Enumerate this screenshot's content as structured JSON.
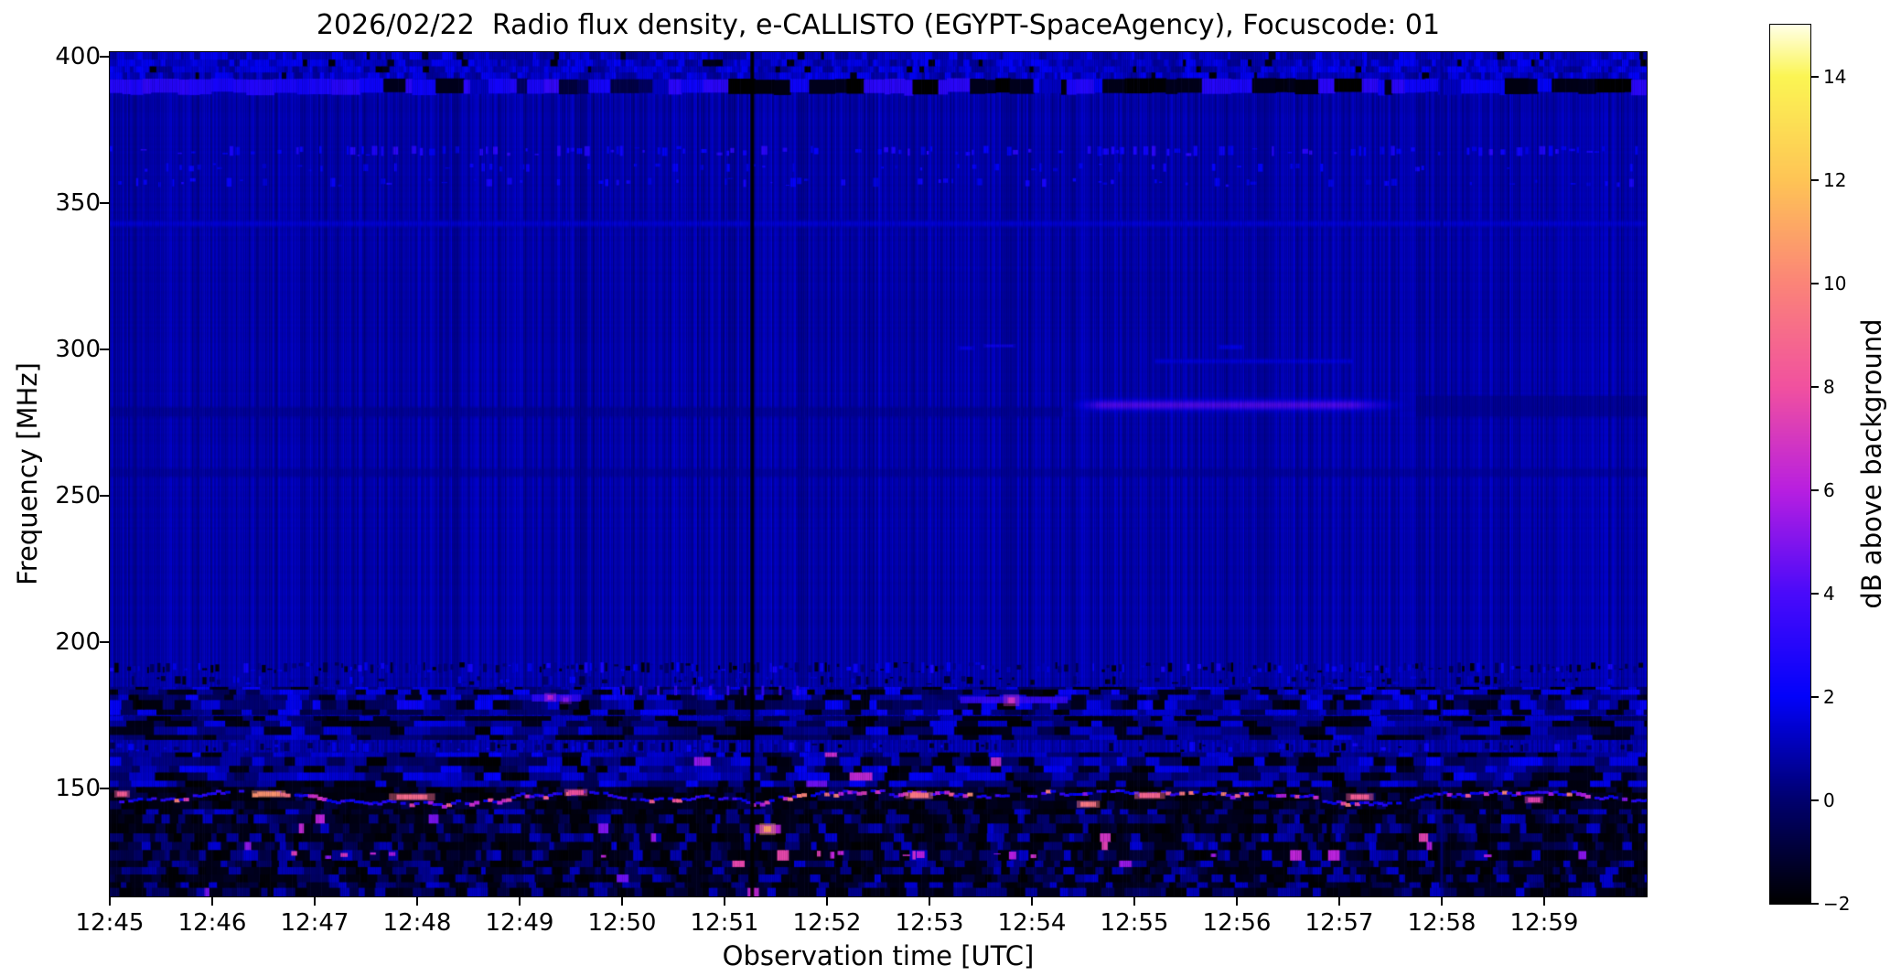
{
  "chart_data": {
    "type": "heatmap",
    "title": "2026/02/22  Radio flux density, e-CALLISTO (EGYPT-SpaceAgency), Focuscode: 01",
    "xlabel": "Observation time [UTC]",
    "ylabel": "Frequency [MHz]",
    "colorbar_label": "dB above background",
    "x_ticks": [
      "12:45",
      "12:46",
      "12:47",
      "12:48",
      "12:49",
      "12:50",
      "12:51",
      "12:52",
      "12:53",
      "12:54",
      "12:55",
      "12:56",
      "12:57",
      "12:58",
      "12:59"
    ],
    "y_ticks": [
      400,
      350,
      300,
      250,
      200,
      150
    ],
    "x_range": {
      "start": "12:45",
      "end": "13:00",
      "minutes": 15
    },
    "y_range_mhz": [
      113,
      401.5
    ],
    "value_range_db": [
      -2,
      15
    ],
    "colorbar_ticks": [
      14,
      12,
      10,
      8,
      6,
      4,
      2,
      0,
      -2
    ],
    "background_db": 0.9,
    "grid": false,
    "colormap": {
      "name": "gnuplot2-like",
      "stops": [
        [
          -2,
          "#000000"
        ],
        [
          0,
          "#00006e"
        ],
        [
          2,
          "#0202fa"
        ],
        [
          4,
          "#4a0afa"
        ],
        [
          6,
          "#b81fe0"
        ],
        [
          8,
          "#f1519f"
        ],
        [
          10,
          "#fb8478"
        ],
        [
          12,
          "#fec455"
        ],
        [
          14,
          "#fbf553"
        ],
        [
          15,
          "#ffffe6"
        ]
      ]
    },
    "features": [
      {
        "id": "bright-top-edge",
        "type": "mottle",
        "desc": "brighter striped rows at very top",
        "f": [
          392.5,
          401.5
        ],
        "t": [
          0,
          15
        ],
        "base": 1.3,
        "amp": 0.8,
        "cell": [
          0.05,
          3.0
        ],
        "dark_frac": 0.05
      },
      {
        "id": "rfi-band-390",
        "type": "segment_row",
        "desc": "RFI band of alternating bright-blue and black segments",
        "f": [
          387.3,
          392.3
        ],
        "t": [
          0,
          15
        ],
        "seg_w": [
          0.04,
          0.28
        ],
        "palette": [
          3.1,
          2.3,
          1.2,
          -2,
          -1.5
        ],
        "weights": [
          0.26,
          0.2,
          0.12,
          0.26,
          0.16
        ],
        "dark_zones": [
          [
            6.1,
            6.5
          ],
          [
            9.25,
            11.7
          ],
          [
            13.3,
            14.1
          ]
        ],
        "bright_zones": [
          [
            0,
            2.2
          ],
          [
            3.6,
            5.2
          ]
        ]
      },
      {
        "id": "speckle-row-368",
        "type": "dot_row",
        "desc": "fine speckle row",
        "f": [
          366,
          369.5
        ],
        "t": [
          0,
          15
        ],
        "density": 0.5,
        "dot_w": [
          0.02,
          0.06
        ],
        "v": [
          1.6,
          3.2
        ]
      },
      {
        "id": "speckle-row-362",
        "type": "dot_row",
        "desc": "sparse speckle row",
        "f": [
          360.6,
          363.6
        ],
        "t": [
          0,
          15
        ],
        "density": 0.18,
        "dot_w": [
          0.02,
          0.05
        ],
        "v": [
          1.3,
          2.4
        ]
      },
      {
        "id": "speckle-row-357",
        "type": "dot_row",
        "desc": "speckle row",
        "f": [
          355.4,
          358.6
        ],
        "t": [
          0,
          15
        ],
        "density": 0.3,
        "dot_w": [
          0.02,
          0.06
        ],
        "v": [
          1.4,
          2.7
        ]
      },
      {
        "id": "faint-row-343",
        "type": "hglow",
        "desc": "very faint brighter row",
        "f": 343,
        "t": [
          0,
          15
        ],
        "peak": 1.5,
        "sigma": 0.9
      },
      {
        "id": "wisps-300",
        "type": "dot_row",
        "desc": "soft bright wisps near 300 MHz",
        "f": [
          298.5,
          302
        ],
        "t": [
          8.3,
          11.4
        ],
        "density": 0.45,
        "dot_w": [
          0.08,
          0.3
        ],
        "v": [
          1.7,
          2.5
        ],
        "soft": true
      },
      {
        "id": "faint-line-296",
        "type": "hglow",
        "desc": "faint thin line",
        "f": 296,
        "t": [
          10.2,
          12.1
        ],
        "peak": 1.7,
        "sigma": 0.7
      },
      {
        "id": "dark-line-278",
        "type": "hdark",
        "desc": "faint dark line before streak",
        "f": [
          277,
          280
        ],
        "t": [
          0,
          9.3
        ],
        "v": 0.45,
        "alpha": 0.6
      },
      {
        "id": "bright-streak-281",
        "type": "hglow",
        "desc": "bright blue horizontal streak 12:54-12:58",
        "f": 281,
        "t": [
          9.3,
          12.72
        ],
        "peak": 4.5,
        "sigma": 1.5,
        "taper": true
      },
      {
        "id": "dark-smudge-281",
        "type": "hdark",
        "desc": "dark smudge after streak",
        "f": [
          277,
          284
        ],
        "t": [
          12.75,
          15
        ],
        "v": 0.35,
        "alpha": 0.55
      },
      {
        "id": "dark-line-258",
        "type": "hdark",
        "desc": "faint dark line",
        "f": [
          256.5,
          259
        ],
        "t": [
          0,
          15
        ],
        "v": 0.5,
        "alpha": 0.5
      },
      {
        "id": "speckle-row-191",
        "type": "dot_row",
        "desc": "dense dark/bright dotted RFI row",
        "f": [
          189.3,
          193
        ],
        "t": [
          0,
          15
        ],
        "density": 0.8,
        "dot_w": [
          0.015,
          0.05
        ],
        "v": [
          -2,
          2.7
        ]
      },
      {
        "id": "speckle-row-187",
        "type": "dot_row",
        "desc": "dotted row",
        "f": [
          185.3,
          188.3
        ],
        "t": [
          0,
          15
        ],
        "density": 0.45,
        "dot_w": [
          0.02,
          0.06
        ],
        "v": [
          -1.7,
          2.1
        ]
      },
      {
        "id": "rfi-band-180",
        "type": "mottle",
        "desc": "mottled RFI band",
        "f": [
          175.3,
          184.6
        ],
        "t": [
          0,
          15
        ],
        "base": 0.8,
        "amp": 1.5,
        "cell": [
          0.13,
          2.8
        ],
        "dark_frac": 0.2
      },
      {
        "id": "comb-183",
        "type": "comb",
        "desc": "comb of short bright dashes",
        "f": [
          181.7,
          185
        ],
        "t": [
          5.0,
          6.7
        ],
        "n": 11,
        "v": 3.3
      },
      {
        "id": "bright-dash-180",
        "type": "patch",
        "desc": "bright dash with magenta spot",
        "f": [
          179,
          181.3
        ],
        "t": [
          8.3,
          9.35
        ],
        "v": 3.4,
        "spots": [
          {
            "t": 8.8,
            "f": 180,
            "v": 6.8,
            "r": 4
          }
        ]
      },
      {
        "id": "purple-spots-181",
        "type": "patch",
        "desc": "bright patch with purple spots near 12:49",
        "f": [
          179.6,
          182
        ],
        "t": [
          4.12,
          4.6
        ],
        "v": 3.2,
        "spots": [
          {
            "t": 4.3,
            "f": 181,
            "v": 6.2,
            "r": 3
          },
          {
            "t": 4.45,
            "f": 180.2,
            "v": 5.0,
            "r": 3
          }
        ]
      },
      {
        "id": "rfi-band-170",
        "type": "mottle",
        "desc": "mottled band with dark bars",
        "f": [
          166.8,
          174.6
        ],
        "t": [
          0,
          15
        ],
        "base": 0.5,
        "amp": 1.25,
        "cell": [
          0.2,
          2.6
        ],
        "dark_frac": 0.3
      },
      {
        "id": "speckle-row-164",
        "type": "dot_row",
        "desc": "dotted row",
        "f": [
          162.4,
          165.8
        ],
        "t": [
          0,
          15
        ],
        "density": 0.55,
        "dot_w": [
          0.02,
          0.06
        ],
        "v": [
          -1.8,
          2.5
        ]
      },
      {
        "id": "noise-156",
        "type": "mottle",
        "desc": "noisy band",
        "f": [
          150.4,
          162.2
        ],
        "t": [
          0,
          15
        ],
        "base": 0.7,
        "amp": 1.35,
        "cell": [
          0.15,
          2.3
        ],
        "dark_frac": 0.22,
        "hot": {
          "density": 0.004,
          "v": [
            4.5,
            7
          ]
        }
      },
      {
        "id": "burst-line-147",
        "type": "jagged_line",
        "desc": "jagged pink/orange interference line on dark band",
        "f": [
          142.8,
          150.4
        ],
        "t": [
          0,
          15
        ],
        "center": 147,
        "hot_density": 0.3,
        "v_hot": [
          5,
          10.5
        ],
        "marks": [
          {
            "t": 0.12,
            "f": 148,
            "v": 8.5,
            "w": 0.1
          },
          {
            "t": 1.55,
            "f": 148,
            "v": 10.5,
            "w": 0.22
          },
          {
            "t": 2.95,
            "f": 147,
            "v": 9.0,
            "w": 0.3
          },
          {
            "t": 4.55,
            "f": 148.5,
            "v": 8.0,
            "w": 0.15
          },
          {
            "t": 7.9,
            "f": 147.5,
            "v": 9.5,
            "w": 0.18
          },
          {
            "t": 9.55,
            "f": 144.5,
            "v": 9.5,
            "w": 0.15
          },
          {
            "t": 10.15,
            "f": 147.5,
            "v": 8.8,
            "w": 0.2
          },
          {
            "t": 12.2,
            "f": 147,
            "v": 8.5,
            "w": 0.18
          },
          {
            "t": 13.9,
            "f": 146,
            "v": 7.5,
            "w": 0.12
          }
        ]
      },
      {
        "id": "noise-bottom",
        "type": "mottle",
        "desc": "noisy bottom region",
        "f": [
          113,
          142.8
        ],
        "t": [
          0,
          15
        ],
        "base": -0.25,
        "amp": 1.7,
        "cell": [
          0.09,
          2.7
        ],
        "dark_frac": 0.42,
        "hot": {
          "density": 0.006,
          "v": [
            4.5,
            8
          ]
        }
      },
      {
        "id": "pink-dots-127",
        "type": "dot_row",
        "desc": "scattered pink dots",
        "f": [
          125.6,
          128.6
        ],
        "t": [
          0,
          15
        ],
        "density": 0.08,
        "dot_w": [
          0.03,
          0.08
        ],
        "v": [
          5,
          7.5
        ]
      },
      {
        "id": "orange-blob-1251",
        "type": "patch",
        "desc": "orange blob near 12:51.4",
        "f": [
          134.5,
          137.5
        ],
        "t": [
          6.3,
          6.55
        ],
        "v": 6.0,
        "spots": [
          {
            "t": 6.42,
            "f": 136,
            "v": 11,
            "r": 4
          }
        ]
      },
      {
        "id": "magenta-tick-1253",
        "type": "patch",
        "desc": "magenta vertical dash near 12:53.6",
        "f": [
          157.5,
          160.5
        ],
        "t": [
          8.6,
          8.7
        ],
        "v": 6.8,
        "spots": []
      },
      {
        "id": "gap-line-1251",
        "type": "vline",
        "desc": "black data-gap column at ~12:51.3",
        "t": 6.27,
        "w": 4,
        "v": -2,
        "alpha": 0.88
      },
      {
        "id": "faint-column-1258",
        "type": "vline",
        "desc": "faint dark column at ~12:58",
        "t": 13.0,
        "w": 4,
        "v": 0.3,
        "alpha": 0.4
      }
    ]
  }
}
